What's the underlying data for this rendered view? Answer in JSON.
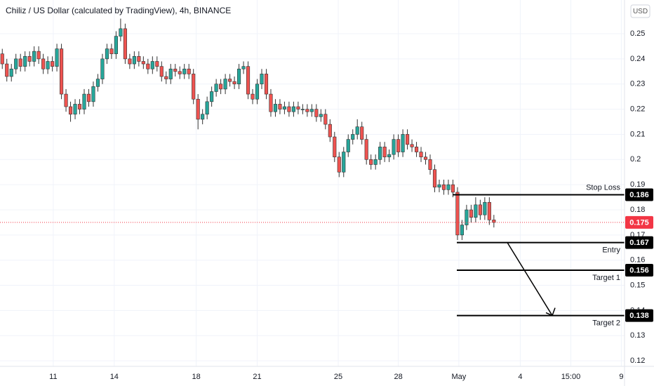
{
  "chart_data": {
    "type": "candlestick",
    "title": "Chiliz / US Dollar (calculated by TradingView), 4h, BINANCE",
    "currency": "USD",
    "up_color": "#26a69a",
    "down_color": "#ef5350",
    "open": [
      0.242,
      0.238,
      0.233,
      0.236,
      0.24,
      0.237,
      0.241,
      0.239,
      0.243,
      0.24,
      0.236,
      0.239,
      0.237,
      0.244,
      0.226,
      0.221,
      0.218,
      0.222,
      0.22,
      0.226,
      0.223,
      0.229,
      0.232,
      0.24,
      0.244,
      0.242,
      0.249,
      0.252,
      0.24,
      0.238,
      0.241,
      0.239,
      0.238,
      0.236,
      0.239,
      0.237,
      0.233,
      0.232,
      0.236,
      0.235,
      0.234,
      0.236,
      0.234,
      0.224,
      0.216,
      0.218,
      0.223,
      0.227,
      0.23,
      0.228,
      0.232,
      0.231,
      0.23,
      0.236,
      0.237,
      0.226,
      0.224,
      0.23,
      0.234,
      0.226,
      0.219,
      0.222,
      0.22,
      0.221,
      0.219,
      0.221,
      0.22,
      0.22,
      0.219,
      0.22,
      0.217,
      0.218,
      0.214,
      0.209,
      0.201,
      0.195,
      0.203,
      0.208,
      0.21,
      0.213,
      0.208,
      0.2,
      0.198,
      0.2,
      0.205,
      0.201,
      0.202,
      0.208,
      0.203,
      0.21,
      0.206,
      0.205,
      0.203,
      0.201,
      0.2,
      0.196,
      0.189,
      0.19,
      0.188,
      0.19,
      0.187,
      0.17,
      0.174,
      0.18,
      0.177,
      0.182,
      0.178,
      0.183,
      0.176
    ],
    "high": [
      0.244,
      0.24,
      0.238,
      0.242,
      0.242,
      0.243,
      0.243,
      0.245,
      0.245,
      0.242,
      0.241,
      0.241,
      0.246,
      0.246,
      0.228,
      0.223,
      0.224,
      0.224,
      0.228,
      0.228,
      0.231,
      0.234,
      0.242,
      0.246,
      0.246,
      0.251,
      0.256,
      0.254,
      0.242,
      0.243,
      0.243,
      0.241,
      0.24,
      0.241,
      0.241,
      0.239,
      0.235,
      0.238,
      0.238,
      0.237,
      0.238,
      0.238,
      0.236,
      0.226,
      0.22,
      0.225,
      0.229,
      0.232,
      0.232,
      0.234,
      0.234,
      0.233,
      0.238,
      0.239,
      0.239,
      0.228,
      0.232,
      0.236,
      0.236,
      0.228,
      0.224,
      0.224,
      0.223,
      0.223,
      0.223,
      0.223,
      0.222,
      0.222,
      0.222,
      0.222,
      0.22,
      0.22,
      0.216,
      0.211,
      0.203,
      0.205,
      0.21,
      0.212,
      0.216,
      0.215,
      0.21,
      0.202,
      0.202,
      0.207,
      0.207,
      0.204,
      0.21,
      0.21,
      0.212,
      0.212,
      0.208,
      0.207,
      0.205,
      0.203,
      0.202,
      0.198,
      0.192,
      0.192,
      0.192,
      0.192,
      0.189,
      0.176,
      0.182,
      0.182,
      0.185,
      0.184,
      0.185,
      0.185,
      0.178
    ],
    "low": [
      0.236,
      0.231,
      0.231,
      0.234,
      0.235,
      0.235,
      0.237,
      0.237,
      0.238,
      0.234,
      0.234,
      0.235,
      0.235,
      0.224,
      0.219,
      0.215,
      0.216,
      0.218,
      0.218,
      0.221,
      0.221,
      0.227,
      0.23,
      0.238,
      0.24,
      0.24,
      0.247,
      0.238,
      0.236,
      0.236,
      0.237,
      0.236,
      0.234,
      0.234,
      0.235,
      0.231,
      0.23,
      0.23,
      0.233,
      0.232,
      0.232,
      0.232,
      0.222,
      0.212,
      0.214,
      0.216,
      0.221,
      0.225,
      0.226,
      0.226,
      0.229,
      0.228,
      0.228,
      0.234,
      0.224,
      0.222,
      0.222,
      0.228,
      0.224,
      0.217,
      0.217,
      0.218,
      0.218,
      0.217,
      0.217,
      0.218,
      0.218,
      0.217,
      0.217,
      0.215,
      0.215,
      0.212,
      0.207,
      0.199,
      0.193,
      0.193,
      0.201,
      0.206,
      0.208,
      0.206,
      0.198,
      0.196,
      0.196,
      0.198,
      0.199,
      0.199,
      0.2,
      0.201,
      0.201,
      0.204,
      0.203,
      0.201,
      0.199,
      0.198,
      0.194,
      0.187,
      0.187,
      0.186,
      0.186,
      0.185,
      0.168,
      0.168,
      0.172,
      0.175,
      0.175,
      0.176,
      0.176,
      0.174,
      0.173
    ],
    "close": [
      0.238,
      0.233,
      0.236,
      0.24,
      0.237,
      0.241,
      0.239,
      0.243,
      0.24,
      0.236,
      0.239,
      0.237,
      0.244,
      0.226,
      0.221,
      0.218,
      0.222,
      0.22,
      0.226,
      0.223,
      0.229,
      0.232,
      0.24,
      0.244,
      0.242,
      0.249,
      0.252,
      0.24,
      0.238,
      0.241,
      0.239,
      0.238,
      0.236,
      0.239,
      0.237,
      0.233,
      0.232,
      0.236,
      0.235,
      0.234,
      0.236,
      0.234,
      0.224,
      0.216,
      0.218,
      0.223,
      0.227,
      0.23,
      0.228,
      0.232,
      0.231,
      0.23,
      0.236,
      0.237,
      0.226,
      0.224,
      0.23,
      0.234,
      0.226,
      0.219,
      0.222,
      0.22,
      0.221,
      0.219,
      0.221,
      0.22,
      0.22,
      0.219,
      0.22,
      0.217,
      0.218,
      0.214,
      0.209,
      0.201,
      0.195,
      0.203,
      0.208,
      0.21,
      0.213,
      0.208,
      0.2,
      0.198,
      0.2,
      0.205,
      0.201,
      0.202,
      0.208,
      0.203,
      0.21,
      0.206,
      0.205,
      0.203,
      0.201,
      0.2,
      0.196,
      0.189,
      0.19,
      0.188,
      0.19,
      0.187,
      0.17,
      0.174,
      0.18,
      0.177,
      0.182,
      0.178,
      0.183,
      0.176,
      0.175
    ],
    "last_price": 0.175,
    "levels": [
      {
        "name": "Stop Loss",
        "value": 0.186
      },
      {
        "name": "Entry",
        "value": 0.167
      },
      {
        "name": "Target 1",
        "value": 0.156
      },
      {
        "name": "Target 2",
        "value": 0.138
      }
    ],
    "ylim": [
      0.1178,
      0.2634
    ],
    "yticks": [
      0.12,
      0.13,
      0.14,
      0.15,
      0.16,
      0.17,
      0.18,
      0.19,
      0.2,
      0.21,
      0.22,
      0.23,
      0.24,
      0.25
    ],
    "xlim": [
      0,
      137.2
    ],
    "xticks": [
      {
        "value": 11.7,
        "label": "11"
      },
      {
        "value": 25.1,
        "label": "14"
      },
      {
        "value": 43.1,
        "label": "18"
      },
      {
        "value": 56.5,
        "label": "21"
      },
      {
        "value": 74.3,
        "label": "25"
      },
      {
        "value": 87.5,
        "label": "28"
      },
      {
        "value": 100.8,
        "label": "May"
      },
      {
        "value": 114.3,
        "label": "4"
      },
      {
        "value": 125.4,
        "label": "15:00"
      },
      {
        "value": 136.5,
        "label": "9"
      }
    ],
    "grid": true
  }
}
